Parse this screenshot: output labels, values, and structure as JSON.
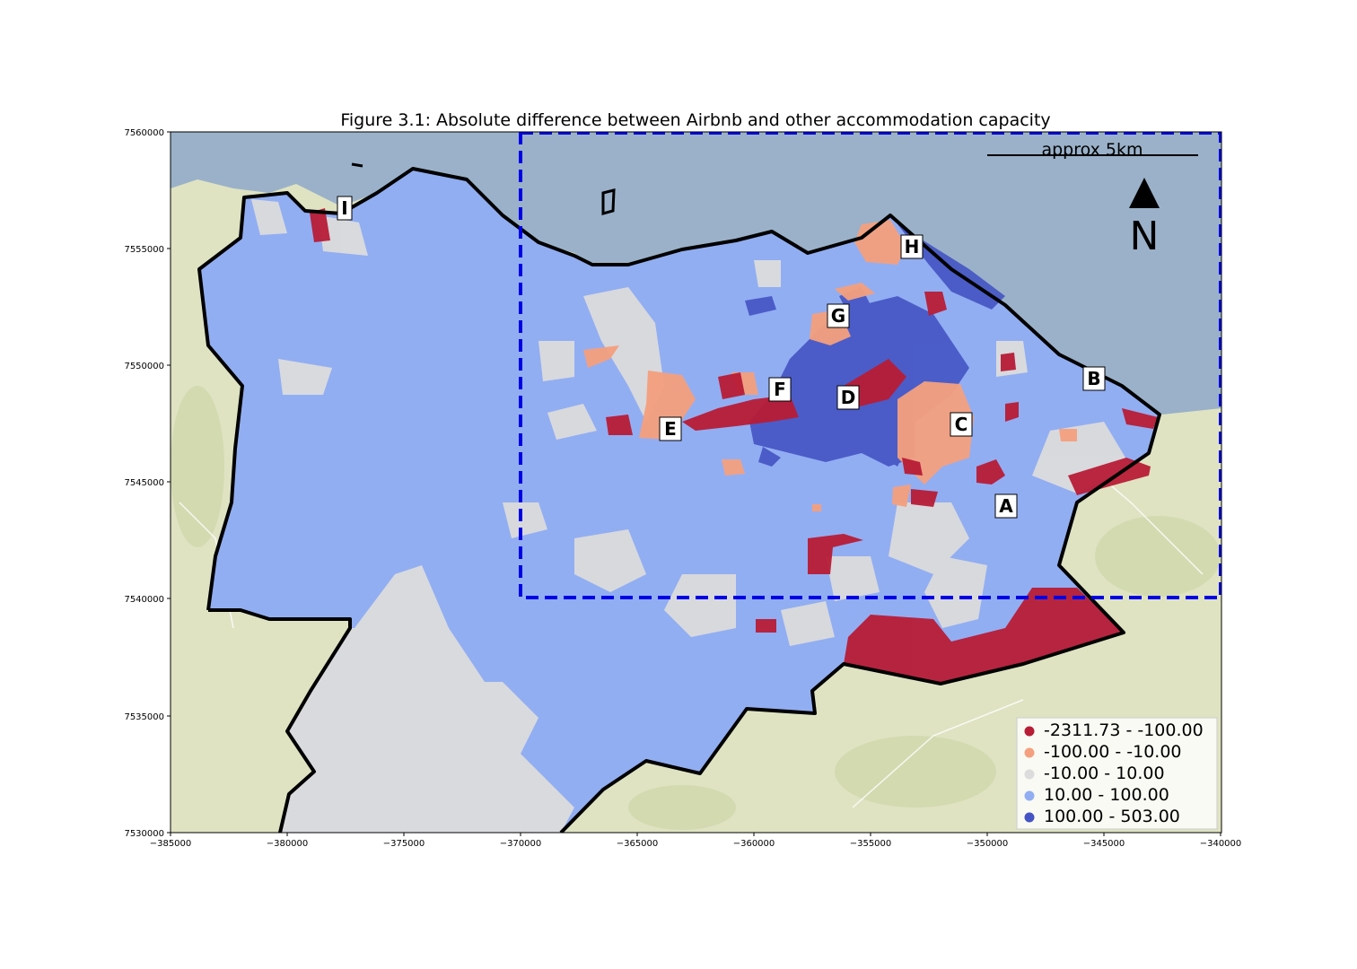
{
  "title": "Figure 3.1: Absolute difference between Airbnb and other accommodation capacity",
  "axes": {
    "x_ticks": [
      "−385000",
      "−380000",
      "−375000",
      "−370000",
      "−365000",
      "−360000",
      "−355000",
      "−350000",
      "−345000",
      "−340000"
    ],
    "y_ticks": [
      "7560000",
      "7555000",
      "7550000",
      "7545000",
      "7540000",
      "7535000",
      "7530000"
    ],
    "xlim": [
      -385000,
      -340000
    ],
    "ylim": [
      7530000,
      7560000
    ]
  },
  "scale_bar": {
    "label": "approx 5km"
  },
  "north_arrow": {
    "label": "N"
  },
  "legend": {
    "placement": "bottom-right",
    "items": [
      {
        "label": "-2311.73 - -100.00",
        "color": "#b81c36"
      },
      {
        "label": "-100.00 - -10.00",
        "color": "#f4a07e"
      },
      {
        "label": "-10.00 - 10.00",
        "color": "#dcdcdc"
      },
      {
        "label": "10.00 - 100.00",
        "color": "#92aef2"
      },
      {
        "label": "100.00 - 503.00",
        "color": "#4454c4"
      }
    ]
  },
  "place_labels": [
    "A",
    "B",
    "C",
    "D",
    "E",
    "F",
    "G",
    "H",
    "I"
  ],
  "colors": {
    "sea": "#9ab1c9",
    "land": "#dfe3c2",
    "boundary": "#000000",
    "inset_box": "#0000e6"
  }
}
